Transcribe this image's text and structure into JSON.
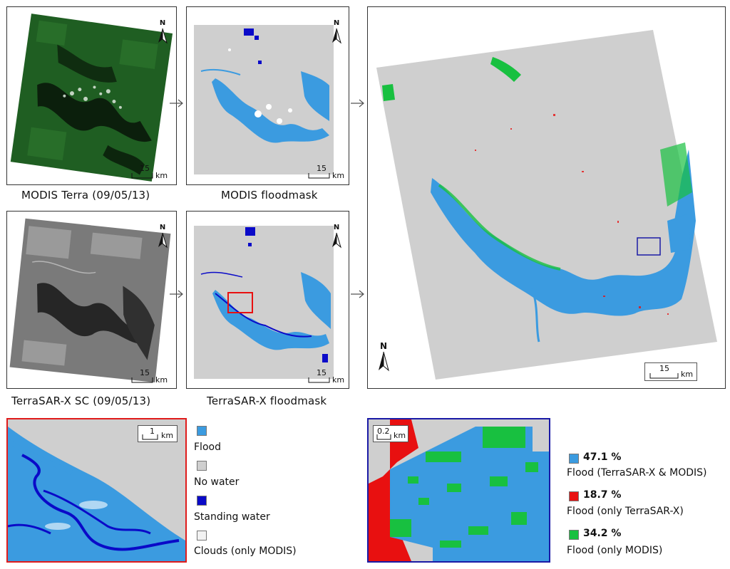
{
  "panels": {
    "modis_terra": {
      "caption": "MODIS Terra (09/05/13)",
      "scale_value": "15",
      "scale_unit": "km",
      "north": "N"
    },
    "modis_floodmask": {
      "caption": "MODIS floodmask",
      "scale_value": "15",
      "scale_unit": "km",
      "north": "N"
    },
    "terrasar_sc": {
      "caption": "TerraSAR-X SC (09/05/13)",
      "scale_value": "15",
      "scale_unit": "km",
      "north": "N"
    },
    "terrasar_floodmask": {
      "caption": "TerraSAR-X floodmask",
      "scale_value": "15",
      "scale_unit": "km",
      "north": "N"
    },
    "combined": {
      "scale_value": "15",
      "scale_unit": "km",
      "north": "N"
    },
    "zoom_red": {
      "scale_value": "1",
      "scale_unit": "km"
    },
    "zoom_blue": {
      "scale_value": "0.2",
      "scale_unit": "km"
    }
  },
  "legend_left": [
    {
      "label": "Flood",
      "color": "#3b9be0"
    },
    {
      "label": "No water",
      "color": "#cfcfcf"
    },
    {
      "label": "Standing water",
      "color": "#0a0ac8"
    },
    {
      "label": "Clouds (only MODIS)",
      "color": "#f2f2f2"
    }
  ],
  "legend_right": [
    {
      "percent": "47.1 %",
      "label": "Flood (TerraSAR-X & MODIS)",
      "color": "#3b9be0"
    },
    {
      "percent": "18.7 %",
      "label": "Flood (only TerraSAR-X)",
      "color": "#e81010"
    },
    {
      "percent": "34.2 %",
      "label": "Flood (only MODIS)",
      "color": "#18c040"
    }
  ],
  "colors": {
    "background_gray": "#cfcfcf",
    "flood_blue": "#3b9be0",
    "standing_water": "#0a0ac8",
    "only_terrasar_red": "#e81010",
    "only_modis_green": "#18c040",
    "satellite_green": "#1e5a1e",
    "sar_gray": "#7a7a7a"
  }
}
